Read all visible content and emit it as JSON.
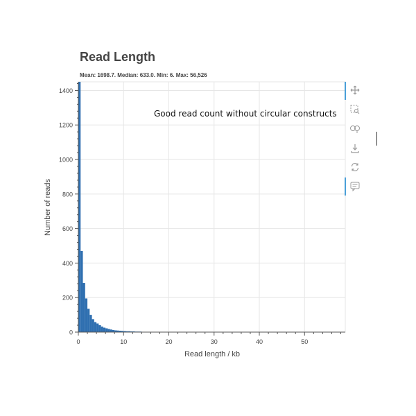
{
  "chart_data": {
    "type": "bar",
    "title": "Read Length",
    "subtitle": "Mean: 1698.7. Median: 633.0. Min: 6. Max: 56,526",
    "annotation": "Good read count without circular constructs",
    "xlabel": "Read length / kb",
    "ylabel": "Number of reads",
    "xlim": [
      0,
      59
    ],
    "ylim": [
      0,
      1450
    ],
    "xticks": [
      0,
      10,
      20,
      30,
      40,
      50
    ],
    "yticks": [
      0,
      200,
      400,
      600,
      800,
      1000,
      1200,
      1400
    ],
    "bin_width": 0.5,
    "bins": [
      {
        "x": 0.0,
        "y": 1460
      },
      {
        "x": 0.5,
        "y": 470
      },
      {
        "x": 1.0,
        "y": 285
      },
      {
        "x": 1.5,
        "y": 195
      },
      {
        "x": 2.0,
        "y": 135
      },
      {
        "x": 2.5,
        "y": 100
      },
      {
        "x": 3.0,
        "y": 75
      },
      {
        "x": 3.5,
        "y": 58
      },
      {
        "x": 4.0,
        "y": 50
      },
      {
        "x": 4.5,
        "y": 40
      },
      {
        "x": 5.0,
        "y": 32
      },
      {
        "x": 5.5,
        "y": 26
      },
      {
        "x": 6.0,
        "y": 22
      },
      {
        "x": 6.5,
        "y": 18
      },
      {
        "x": 7.0,
        "y": 15
      },
      {
        "x": 7.5,
        "y": 12
      },
      {
        "x": 8.0,
        "y": 10
      },
      {
        "x": 8.5,
        "y": 9
      },
      {
        "x": 9.0,
        "y": 8
      },
      {
        "x": 9.5,
        "y": 7
      },
      {
        "x": 10.0,
        "y": 6
      },
      {
        "x": 10.5,
        "y": 5
      },
      {
        "x": 11.0,
        "y": 5
      },
      {
        "x": 11.5,
        "y": 4
      },
      {
        "x": 12.0,
        "y": 4
      },
      {
        "x": 12.5,
        "y": 3
      },
      {
        "x": 13.0,
        "y": 3
      },
      {
        "x": 13.5,
        "y": 3
      },
      {
        "x": 14.0,
        "y": 2
      },
      {
        "x": 14.5,
        "y": 2
      },
      {
        "x": 15.0,
        "y": 2
      },
      {
        "x": 16.0,
        "y": 2
      },
      {
        "x": 17.0,
        "y": 1
      },
      {
        "x": 18.0,
        "y": 1
      },
      {
        "x": 20.0,
        "y": 1
      },
      {
        "x": 22.0,
        "y": 1
      },
      {
        "x": 25.0,
        "y": 1
      },
      {
        "x": 30.0,
        "y": 1
      },
      {
        "x": 35.0,
        "y": 1
      },
      {
        "x": 42.0,
        "y": 1
      },
      {
        "x": 56.5,
        "y": 1
      }
    ],
    "bar_color": "#2f6fb0",
    "grid": true
  },
  "toolbar": {
    "tools": [
      "pan-icon",
      "box-zoom-icon",
      "wheel-zoom-icon",
      "save-icon",
      "reset-icon",
      "hover-icon"
    ]
  },
  "colors": {
    "accent": "#4a9fd8",
    "bar": "#2f6fb0",
    "axis": "#555555",
    "grid": "#e6e6e6"
  }
}
